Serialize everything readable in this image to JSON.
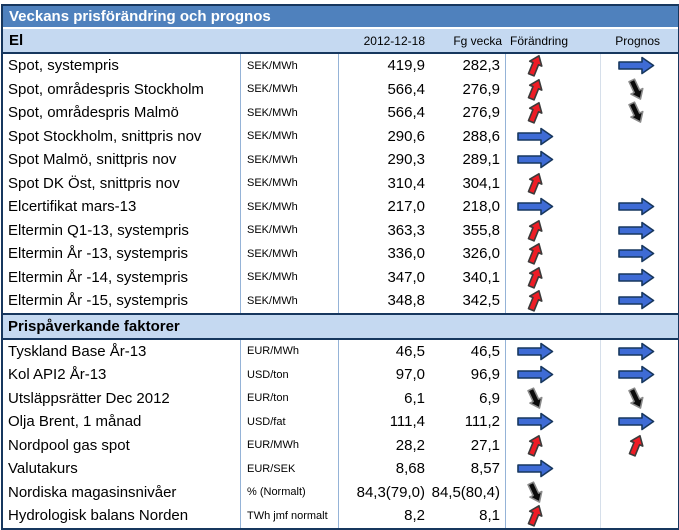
{
  "title": "Veckans prisförändring och prognos",
  "columns": {
    "section1_label": "El",
    "date": "2012-12-18",
    "prev_week": "Fg vecka",
    "change": "Förändring",
    "forecast": "Prognos"
  },
  "section2_label": "Prispåverkande faktorer",
  "colors": {
    "title_bar": "#4F81BD",
    "header_band": "#C5D9F1",
    "dark_border": "#17375E",
    "column_separator": "#95B3D7",
    "light_separator": "#D6DFEA",
    "arrow_blue": "#3E6BD5",
    "arrow_blue_stroke": "#17375E",
    "arrow_red": "#EE1C25",
    "arrow_red_stroke": "#3B3B3B",
    "arrow_black": "#0B0B0B",
    "arrow_black_stroke": "#8A8A8A"
  },
  "rows_el": [
    {
      "name": "Spot, systempris",
      "unit": "SEK/MWh",
      "current": "419,9",
      "previous": "282,3",
      "change": "up",
      "forecast": "right"
    },
    {
      "name": "Spot, områdespris Stockholm",
      "unit": "SEK/MWh",
      "current": "566,4",
      "previous": "276,9",
      "change": "up",
      "forecast": "down"
    },
    {
      "name": "Spot, områdespris Malmö",
      "unit": "SEK/MWh",
      "current": "566,4",
      "previous": "276,9",
      "change": "up",
      "forecast": "down"
    },
    {
      "name": "Spot Stockholm, snittpris nov",
      "unit": "SEK/MWh",
      "current": "290,6",
      "previous": "288,6",
      "change": "right",
      "forecast": ""
    },
    {
      "name": "Spot Malmö, snittpris nov",
      "unit": "SEK/MWh",
      "current": "290,3",
      "previous": "289,1",
      "change": "right",
      "forecast": ""
    },
    {
      "name": "Spot DK Öst, snittpris nov",
      "unit": "SEK/MWh",
      "current": "310,4",
      "previous": "304,1",
      "change": "up",
      "forecast": ""
    },
    {
      "name": "Elcertifikat mars-13",
      "unit": "SEK/MWh",
      "current": "217,0",
      "previous": "218,0",
      "change": "right",
      "forecast": "right"
    },
    {
      "name": "Eltermin Q1-13, systempris",
      "unit": "SEK/MWh",
      "current": "363,3",
      "previous": "355,8",
      "change": "up",
      "forecast": "right"
    },
    {
      "name": "Eltermin År -13, systempris",
      "unit": "SEK/MWh",
      "current": "336,0",
      "previous": "326,0",
      "change": "up",
      "forecast": "right"
    },
    {
      "name": "Eltermin År -14, systempris",
      "unit": "SEK/MWh",
      "current": "347,0",
      "previous": "340,1",
      "change": "up",
      "forecast": "right"
    },
    {
      "name": "Eltermin År -15, systempris",
      "unit": "SEK/MWh",
      "current": "348,8",
      "previous": "342,5",
      "change": "up",
      "forecast": "right"
    }
  ],
  "rows_factors": [
    {
      "name": "Tyskland Base År-13",
      "unit": "EUR/MWh",
      "current": "46,5",
      "previous": "46,5",
      "change": "right",
      "forecast": "right"
    },
    {
      "name": "Kol API2 År-13",
      "unit": "USD/ton",
      "current": "97,0",
      "previous": "96,9",
      "change": "right",
      "forecast": "right"
    },
    {
      "name": "Utsläppsrätter Dec 2012",
      "unit": "EUR/ton",
      "current": "6,1",
      "previous": "6,9",
      "change": "down",
      "forecast": "down"
    },
    {
      "name": "Olja Brent, 1 månad",
      "unit": "USD/fat",
      "current": "111,4",
      "previous": "111,2",
      "change": "right",
      "forecast": "right"
    },
    {
      "name": "Nordpool gas spot",
      "unit": "EUR/MWh",
      "current": "28,2",
      "previous": "27,1",
      "change": "up",
      "forecast": "up"
    },
    {
      "name": "Valutakurs",
      "unit": "EUR/SEK",
      "current": "8,68",
      "previous": "8,57",
      "change": "right",
      "forecast": ""
    },
    {
      "name": "Nordiska magasinsnivåer",
      "unit": "% (Normalt)",
      "current": "84,3(79,0)",
      "previous": "84,5(80,4)",
      "change": "down",
      "forecast": ""
    },
    {
      "name": "Hydrologisk balans Norden",
      "unit": "TWh jmf normalt",
      "current": "8,2",
      "previous": "8,1",
      "change": "up",
      "forecast": ""
    }
  ]
}
